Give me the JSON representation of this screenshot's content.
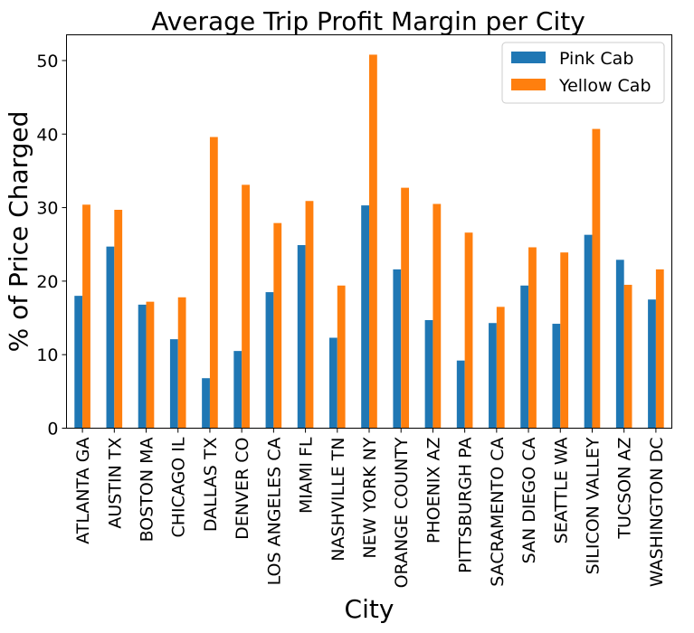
{
  "chart_data": {
    "type": "bar",
    "title": "Average Trip Profit Margin per City",
    "xlabel": "City",
    "ylabel": "% of Price Charged",
    "ylim": [
      0,
      53.5
    ],
    "yticks": [
      0,
      10,
      20,
      30,
      40,
      50
    ],
    "grid": false,
    "legend_position": "top-right",
    "categories": [
      "ATLANTA GA",
      "AUSTIN TX",
      "BOSTON MA",
      "CHICAGO IL",
      "DALLAS TX",
      "DENVER CO",
      "LOS ANGELES CA",
      "MIAMI FL",
      "NASHVILLE TN",
      "NEW YORK NY",
      "ORANGE COUNTY",
      "PHOENIX AZ",
      "PITTSBURGH PA",
      "SACRAMENTO CA",
      "SAN DIEGO CA",
      "SEATTLE WA",
      "SILICON VALLEY",
      "TUCSON AZ",
      "WASHINGTON DC"
    ],
    "series": [
      {
        "name": "Pink Cab",
        "color": "#1f77b4",
        "values": [
          18.0,
          24.7,
          16.8,
          12.1,
          6.8,
          10.5,
          18.5,
          24.9,
          12.3,
          30.3,
          21.6,
          14.7,
          9.2,
          14.3,
          19.4,
          14.2,
          26.3,
          22.9,
          17.5
        ]
      },
      {
        "name": "Yellow Cab",
        "color": "#ff7f0e",
        "values": [
          30.4,
          29.7,
          17.2,
          17.8,
          39.6,
          33.1,
          27.9,
          30.9,
          19.4,
          50.8,
          32.7,
          30.5,
          26.6,
          16.5,
          24.6,
          23.9,
          40.7,
          19.5,
          21.6
        ]
      }
    ]
  }
}
